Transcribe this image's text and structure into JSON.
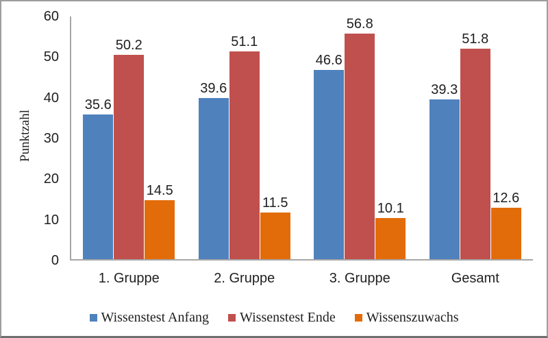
{
  "frame": {
    "background": "#ffffff",
    "border_color": "#9d9d9d"
  },
  "chart_data": {
    "type": "bar",
    "categories": [
      "1. Gruppe",
      "2. Gruppe",
      "3. Gruppe",
      "Gesamt"
    ],
    "series": [
      {
        "name": "Wissenstest Anfang",
        "color": "#4F81BD",
        "values": [
          35.6,
          39.6,
          46.6,
          39.3
        ]
      },
      {
        "name": "Wissenstest Ende",
        "color": "#C0504D",
        "values": [
          50.2,
          51.1,
          56.8,
          51.8
        ]
      },
      {
        "name": "Wissenszuwachs",
        "color": "#E36C0A",
        "values": [
          14.5,
          11.5,
          10.1,
          12.6
        ]
      }
    ],
    "title": "",
    "xlabel": "",
    "ylabel": "Punktzahl",
    "ylim": [
      0,
      60
    ],
    "yticks": [
      0,
      10,
      20,
      30,
      40,
      50,
      60
    ],
    "grid": false,
    "legend_position": "bottom",
    "data_labels": true,
    "axis_color": "#a6a6a6",
    "text_color": "#1f1f1f"
  }
}
